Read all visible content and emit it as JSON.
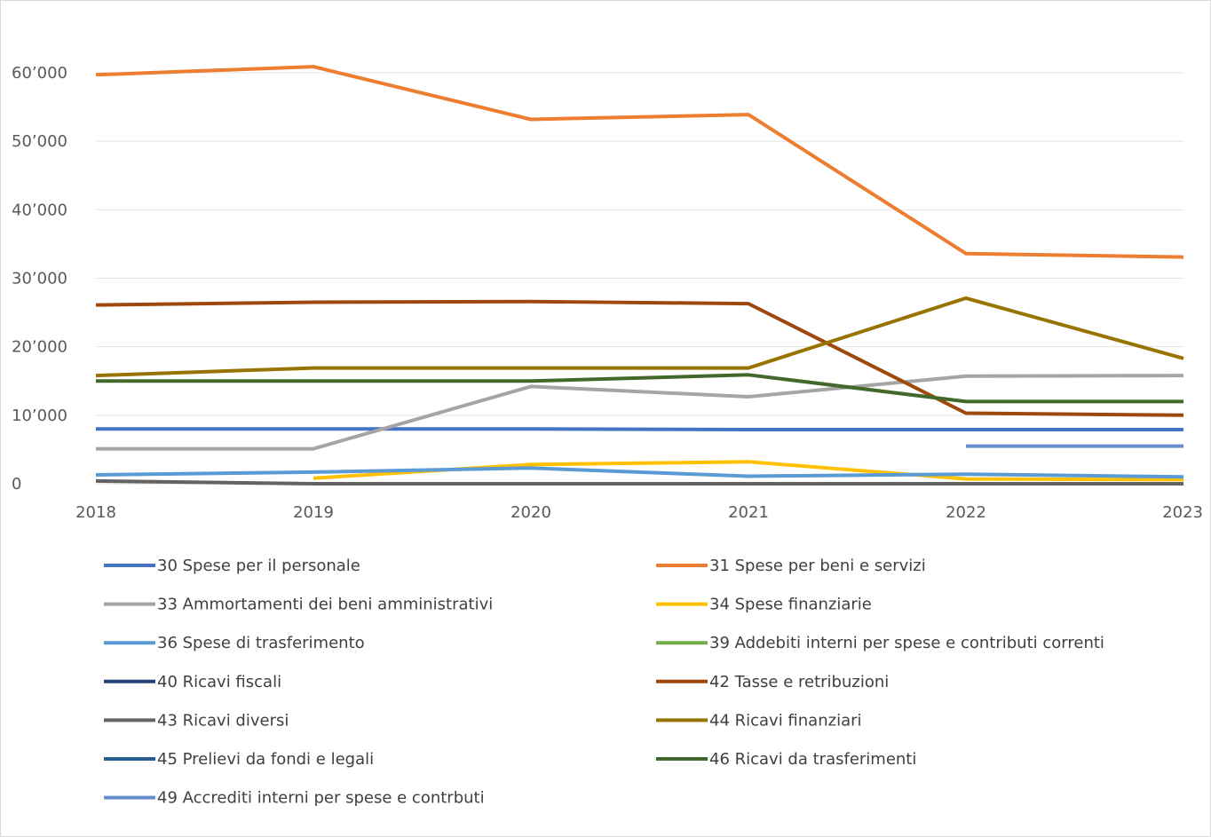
{
  "chart_data": {
    "type": "line",
    "title": "",
    "xlabel": "",
    "ylabel": "",
    "x": [
      "2018",
      "2019",
      "2020",
      "2021",
      "2022",
      "2023"
    ],
    "ylim": [
      0,
      60000
    ],
    "yticks": [
      0,
      10000,
      20000,
      30000,
      40000,
      50000,
      60000
    ],
    "ytick_labels": [
      "0",
      "10’000",
      "20’000",
      "30’000",
      "40’000",
      "50’000",
      "60’000"
    ],
    "grid": true,
    "legend_position": "bottom",
    "series": [
      {
        "name": "30 Spese per il personale",
        "color": "#4472c4",
        "values": [
          8000,
          8000,
          8000,
          7900,
          7900,
          7900
        ]
      },
      {
        "name": "31 Spese per beni e servizi",
        "color": "#ed7d31",
        "values": [
          59700,
          60900,
          53200,
          53900,
          33600,
          33100
        ]
      },
      {
        "name": "33 Ammortamenti dei beni amministrativi",
        "color": "#a5a5a5",
        "values": [
          5100,
          5100,
          14200,
          12700,
          15700,
          15800
        ]
      },
      {
        "name": "34 Spese finanziarie",
        "color": "#ffc000",
        "values": [
          null,
          800,
          2800,
          3200,
          700,
          600
        ]
      },
      {
        "name": "36 Spese di trasferimento",
        "color": "#5b9bd5",
        "values": [
          1300,
          1700,
          2300,
          1100,
          1400,
          1000
        ]
      },
      {
        "name": "39 Addebiti interni per spese e contributi correnti",
        "color": "#70ad47",
        "values": [
          null,
          null,
          null,
          null,
          null,
          null
        ]
      },
      {
        "name": "40  Ricavi fiscali",
        "color": "#264478",
        "values": [
          null,
          null,
          null,
          null,
          null,
          null
        ]
      },
      {
        "name": "42 Tasse e retribuzioni",
        "color": "#9e480e",
        "values": [
          26100,
          26500,
          26600,
          26300,
          10300,
          10000
        ]
      },
      {
        "name": "43 Ricavi diversi",
        "color": "#636363",
        "values": [
          400,
          0,
          0,
          0,
          0,
          0
        ]
      },
      {
        "name": "44 Ricavi finanziari",
        "color": "#997300",
        "values": [
          15800,
          16900,
          16900,
          16900,
          27100,
          18300
        ]
      },
      {
        "name": "45 Prelievi da fondi e legali",
        "color": "#255e91",
        "values": [
          null,
          null,
          null,
          null,
          null,
          null
        ]
      },
      {
        "name": "46 Ricavi da trasferimenti",
        "color": "#43682b",
        "values": [
          15000,
          15000,
          15000,
          15900,
          12000,
          12000
        ]
      },
      {
        "name": "49 Accrediti interni per spese e contrbuti",
        "color": "#698ed0",
        "values": [
          null,
          null,
          null,
          null,
          5500,
          5500
        ]
      }
    ]
  }
}
